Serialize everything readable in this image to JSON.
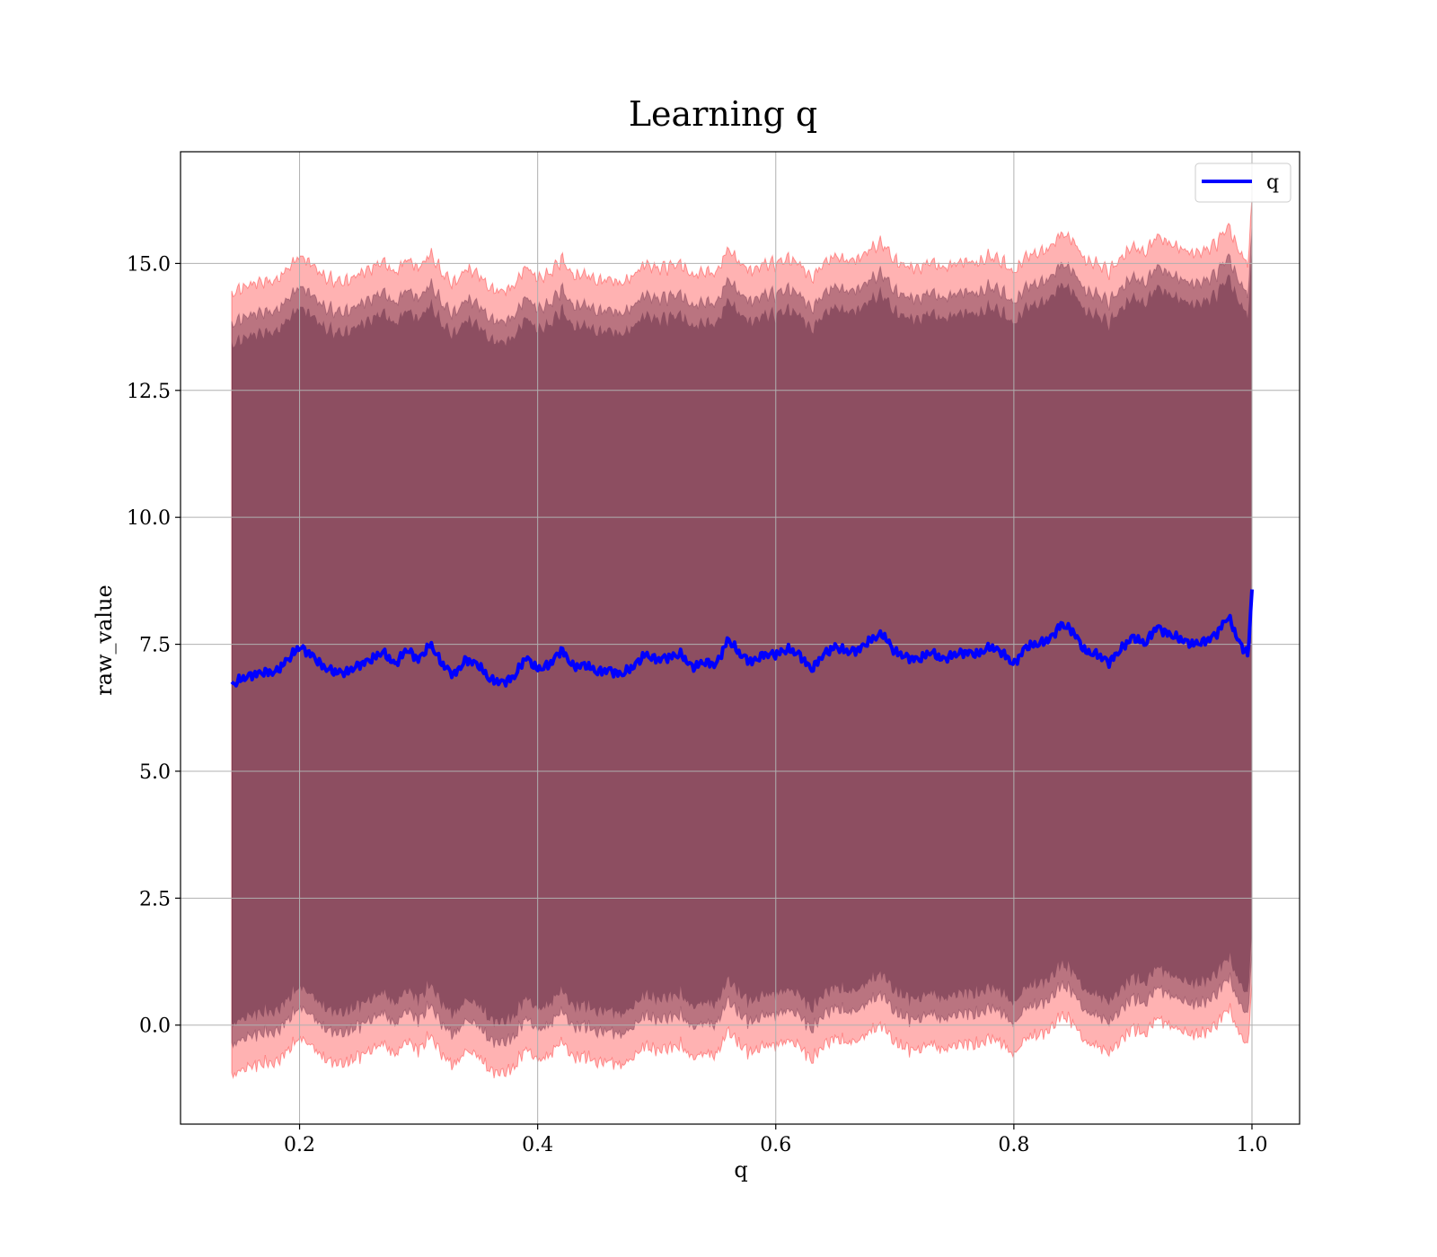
{
  "chart_data": {
    "type": "line",
    "title": "Learning q",
    "xlabel": "q",
    "ylabel": "raw_value",
    "xlim": [
      0.1,
      1.04
    ],
    "ylim": [
      -1.95,
      17.2
    ],
    "xticks": [
      0.2,
      0.4,
      0.6,
      0.8,
      1.0
    ],
    "xtick_labels": [
      "0.2",
      "0.4",
      "0.6",
      "0.8",
      "1.0"
    ],
    "yticks": [
      0.0,
      2.5,
      5.0,
      7.5,
      10.0,
      12.5,
      15.0
    ],
    "ytick_labels": [
      "0.0",
      "2.5",
      "5.0",
      "7.5",
      "10.0",
      "12.5",
      "15.0"
    ],
    "grid": true,
    "legend_position": "top-right",
    "series": [
      {
        "name": "q",
        "color": "#0000ff",
        "x": [
          0.143,
          0.15,
          0.16,
          0.17,
          0.18,
          0.19,
          0.2,
          0.21,
          0.22,
          0.23,
          0.24,
          0.25,
          0.26,
          0.27,
          0.28,
          0.29,
          0.3,
          0.31,
          0.32,
          0.33,
          0.34,
          0.35,
          0.36,
          0.37,
          0.38,
          0.39,
          0.4,
          0.41,
          0.42,
          0.43,
          0.44,
          0.45,
          0.46,
          0.47,
          0.48,
          0.49,
          0.5,
          0.51,
          0.52,
          0.53,
          0.54,
          0.55,
          0.56,
          0.57,
          0.58,
          0.59,
          0.6,
          0.61,
          0.62,
          0.63,
          0.64,
          0.65,
          0.66,
          0.67,
          0.68,
          0.69,
          0.7,
          0.71,
          0.72,
          0.73,
          0.74,
          0.75,
          0.76,
          0.77,
          0.78,
          0.79,
          0.8,
          0.81,
          0.82,
          0.83,
          0.84,
          0.85,
          0.86,
          0.87,
          0.88,
          0.89,
          0.9,
          0.91,
          0.92,
          0.93,
          0.94,
          0.95,
          0.96,
          0.97,
          0.98,
          0.99,
          0.997,
          1.0
        ],
        "y": [
          6.7,
          6.8,
          6.9,
          6.95,
          6.95,
          7.2,
          7.45,
          7.3,
          7.05,
          6.95,
          6.95,
          7.1,
          7.2,
          7.35,
          7.1,
          7.4,
          7.2,
          7.5,
          7.1,
          6.9,
          7.2,
          7.1,
          6.8,
          6.75,
          6.85,
          7.25,
          7.0,
          7.1,
          7.4,
          7.05,
          7.1,
          6.95,
          7.0,
          6.9,
          7.05,
          7.3,
          7.2,
          7.25,
          7.3,
          7.05,
          7.15,
          7.1,
          7.6,
          7.3,
          7.15,
          7.3,
          7.3,
          7.4,
          7.3,
          7.0,
          7.3,
          7.45,
          7.35,
          7.4,
          7.6,
          7.7,
          7.35,
          7.25,
          7.2,
          7.35,
          7.2,
          7.3,
          7.35,
          7.3,
          7.45,
          7.35,
          7.1,
          7.45,
          7.5,
          7.6,
          7.9,
          7.75,
          7.35,
          7.3,
          7.15,
          7.4,
          7.65,
          7.5,
          7.85,
          7.7,
          7.6,
          7.5,
          7.55,
          7.7,
          8.05,
          7.5,
          7.3,
          8.6
        ],
        "band_outer_width": 7.7,
        "band_inner_width": 7.1
      }
    ]
  }
}
